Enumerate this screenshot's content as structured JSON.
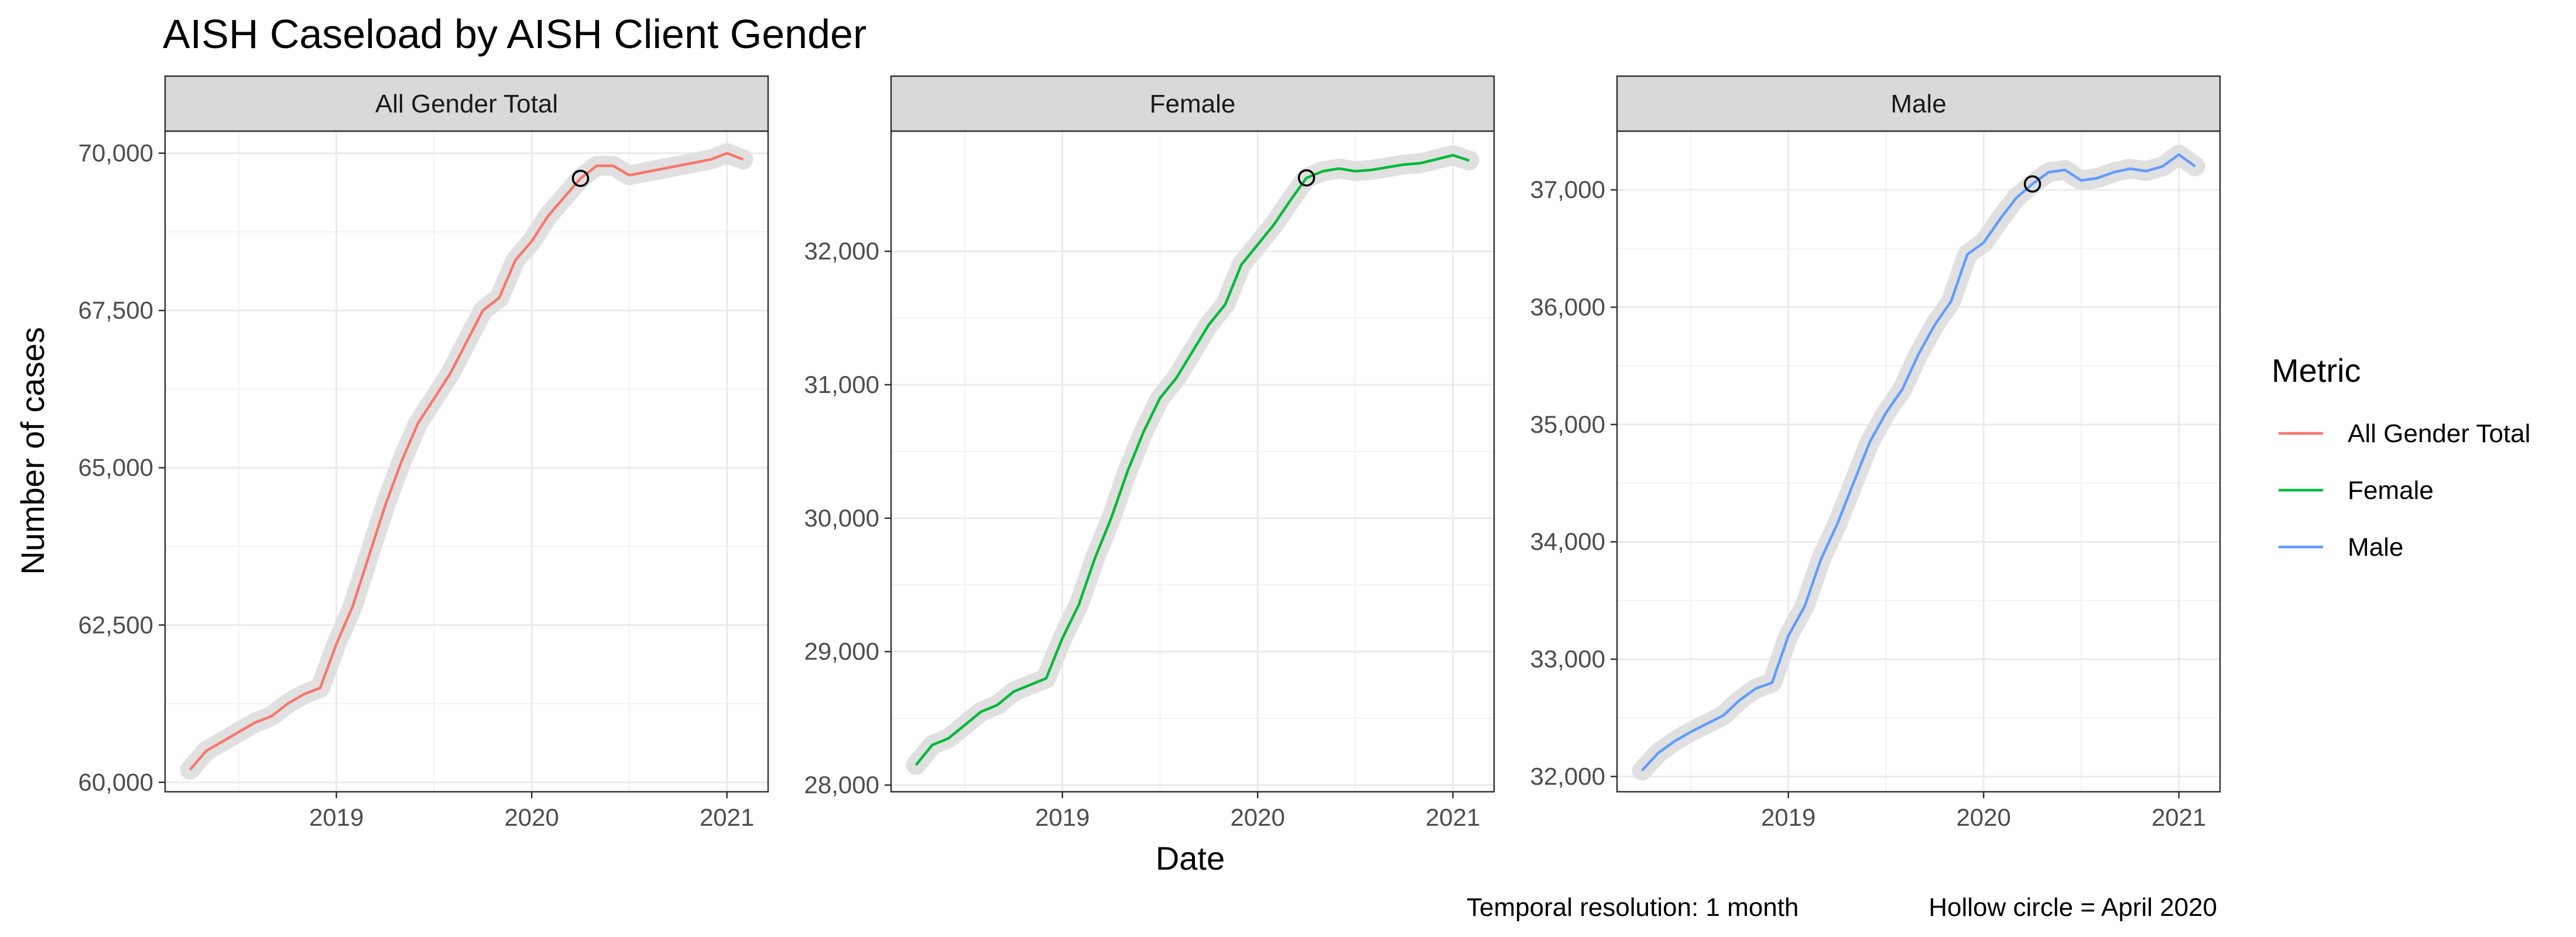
{
  "chart_data": {
    "type": "line",
    "title": "AISH Caseload by AISH Client Gender",
    "xlabel": "Date",
    "ylabel": "Number of cases",
    "legend_title": "Metric",
    "legend_position": "right",
    "grid": true,
    "captions": [
      "Temporal resolution: 1 month",
      "Hollow circle = April 2020"
    ],
    "highlight_date": "2020-04",
    "x": [
      "2018-04",
      "2018-05",
      "2018-06",
      "2018-07",
      "2018-08",
      "2018-09",
      "2018-10",
      "2018-11",
      "2018-12",
      "2019-01",
      "2019-02",
      "2019-03",
      "2019-04",
      "2019-05",
      "2019-06",
      "2019-07",
      "2019-08",
      "2019-09",
      "2019-10",
      "2019-11",
      "2019-12",
      "2020-01",
      "2020-02",
      "2020-03",
      "2020-04",
      "2020-05",
      "2020-06",
      "2020-07",
      "2020-08",
      "2020-09",
      "2020-10",
      "2020-11",
      "2020-12",
      "2021-01",
      "2021-02"
    ],
    "x_ticks": [
      "2019",
      "2020",
      "2021"
    ],
    "panels": [
      {
        "strip": "All Gender Total",
        "color": "#F8766D",
        "ylim": [
          59850,
          70350
        ],
        "y_ticks": [
          60000,
          62500,
          65000,
          67500,
          70000
        ],
        "y_tick_labels": [
          "60,000",
          "62,500",
          "65,000",
          "67,500",
          "70,000"
        ],
        "values": [
          60200,
          60500,
          60650,
          60800,
          60950,
          61050,
          61250,
          61400,
          61500,
          62200,
          62800,
          63600,
          64400,
          65100,
          65700,
          66100,
          66500,
          67000,
          67500,
          67700,
          68300,
          68600,
          69000,
          69300,
          69600,
          69800,
          69800,
          69650,
          69700,
          69750,
          69800,
          69850,
          69900,
          70000,
          69900
        ]
      },
      {
        "strip": "Female",
        "color": "#00BA38",
        "ylim": [
          27950,
          32900
        ],
        "y_ticks": [
          28000,
          29000,
          30000,
          31000,
          32000
        ],
        "y_tick_labels": [
          "28,000",
          "29,000",
          "30,000",
          "31,000",
          "32,000"
        ],
        "values": [
          28150,
          28300,
          28350,
          28450,
          28550,
          28600,
          28700,
          28750,
          28800,
          29100,
          29350,
          29700,
          30000,
          30350,
          30650,
          30900,
          31050,
          31250,
          31450,
          31600,
          31900,
          32050,
          32200,
          32380,
          32550,
          32600,
          32620,
          32600,
          32610,
          32630,
          32650,
          32660,
          32690,
          32720,
          32680
        ]
      },
      {
        "strip": "Male",
        "color": "#619CFF",
        "ylim": [
          31870,
          37500
        ],
        "y_ticks": [
          32000,
          33000,
          34000,
          35000,
          36000,
          37000
        ],
        "y_tick_labels": [
          "32,000",
          "33,000",
          "34,000",
          "35,000",
          "36,000",
          "37,000"
        ],
        "values": [
          32050,
          32200,
          32300,
          32380,
          32450,
          32520,
          32650,
          32750,
          32800,
          33200,
          33450,
          33850,
          34150,
          34500,
          34850,
          35100,
          35300,
          35600,
          35850,
          36050,
          36450,
          36550,
          36750,
          36930,
          37050,
          37150,
          37170,
          37080,
          37100,
          37150,
          37180,
          37160,
          37200,
          37300,
          37200
        ]
      }
    ]
  }
}
